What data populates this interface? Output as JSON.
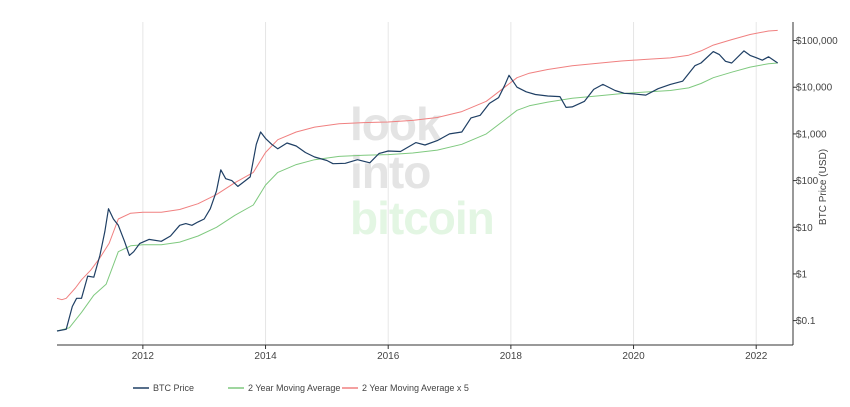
{
  "chart_data": {
    "type": "line",
    "title": "",
    "xlabel": "",
    "ylabel": "BTC Price (USD)",
    "y_scale": "log",
    "ylim": [
      0.03,
      250000
    ],
    "xlim": [
      2010.6,
      2022.6
    ],
    "x_ticks": [
      2012,
      2014,
      2016,
      2018,
      2020,
      2022
    ],
    "x_tick_labels": [
      "2012",
      "2014",
      "2016",
      "2018",
      "2020",
      "2022"
    ],
    "y_ticks": [
      0.1,
      1,
      10,
      100,
      1000,
      10000,
      100000
    ],
    "y_tick_labels": [
      "$0.1",
      "$1",
      "$10",
      "$100",
      "$1,000",
      "$10,000",
      "$100,000"
    ],
    "watermark": [
      "look",
      "into",
      "bitcoin"
    ],
    "legend": {
      "position": "bottom-left"
    },
    "series": [
      {
        "name": "BTC Price",
        "color": "#1f3f64",
        "x": [
          2010.6,
          2010.75,
          2010.85,
          2010.92,
          2011.0,
          2011.1,
          2011.2,
          2011.3,
          2011.38,
          2011.44,
          2011.52,
          2011.6,
          2011.7,
          2011.78,
          2011.85,
          2011.95,
          2012.1,
          2012.3,
          2012.45,
          2012.6,
          2012.7,
          2012.8,
          2012.9,
          2013.0,
          2013.1,
          2013.2,
          2013.27,
          2013.35,
          2013.45,
          2013.55,
          2013.65,
          2013.75,
          2013.85,
          2013.92,
          2014.0,
          2014.1,
          2014.2,
          2014.35,
          2014.5,
          2014.65,
          2014.8,
          2015.0,
          2015.1,
          2015.3,
          2015.5,
          2015.7,
          2015.85,
          2016.0,
          2016.2,
          2016.45,
          2016.6,
          2016.8,
          2017.0,
          2017.2,
          2017.35,
          2017.5,
          2017.65,
          2017.8,
          2017.9,
          2017.97,
          2018.1,
          2018.25,
          2018.4,
          2018.6,
          2018.8,
          2018.9,
          2019.0,
          2019.2,
          2019.35,
          2019.5,
          2019.7,
          2019.85,
          2020.0,
          2020.2,
          2020.4,
          2020.6,
          2020.8,
          2021.0,
          2021.1,
          2021.3,
          2021.4,
          2021.5,
          2021.6,
          2021.8,
          2021.9,
          2022.0,
          2022.1,
          2022.2,
          2022.35
        ],
        "y": [
          0.06,
          0.065,
          0.2,
          0.3,
          0.3,
          0.9,
          0.85,
          2.5,
          8,
          25,
          15,
          11,
          5,
          2.5,
          3,
          4.5,
          5.5,
          5,
          6.5,
          11,
          12,
          11,
          13,
          15,
          25,
          60,
          170,
          110,
          100,
          75,
          95,
          120,
          600,
          1100,
          800,
          600,
          480,
          640,
          550,
          400,
          320,
          270,
          230,
          235,
          280,
          240,
          380,
          430,
          420,
          650,
          580,
          720,
          1000,
          1100,
          2200,
          2500,
          4500,
          6000,
          11000,
          18000,
          10000,
          8000,
          7000,
          6500,
          6300,
          3700,
          3800,
          5000,
          9000,
          11500,
          8500,
          7400,
          7200,
          6800,
          9300,
          11500,
          13500,
          29000,
          33000,
          58000,
          50000,
          36000,
          33000,
          60000,
          48000,
          43000,
          38000,
          45000,
          33000
        ]
      },
      {
        "name": "2 Year Moving Average",
        "color": "#7fc97f",
        "x": [
          2010.6,
          2010.8,
          2011.0,
          2011.2,
          2011.4,
          2011.6,
          2011.8,
          2012.0,
          2012.3,
          2012.6,
          2012.9,
          2013.2,
          2013.5,
          2013.8,
          2014.0,
          2014.2,
          2014.5,
          2014.8,
          2015.2,
          2015.6,
          2016.0,
          2016.4,
          2016.8,
          2017.2,
          2017.6,
          2017.9,
          2018.1,
          2018.3,
          2018.6,
          2019.0,
          2019.4,
          2019.8,
          2020.2,
          2020.6,
          2020.9,
          2021.1,
          2021.3,
          2021.6,
          2021.9,
          2022.2,
          2022.35
        ],
        "y": [
          0.06,
          0.07,
          0.15,
          0.35,
          0.6,
          3,
          4,
          4.2,
          4.2,
          4.8,
          6.5,
          10,
          18,
          30,
          80,
          150,
          220,
          280,
          330,
          350,
          360,
          390,
          450,
          600,
          1000,
          2000,
          3200,
          4000,
          4800,
          5800,
          6500,
          7300,
          7900,
          8500,
          9700,
          12000,
          16000,
          21000,
          27000,
          32000,
          33000
        ]
      },
      {
        "name": "2 Year Moving Average x 5",
        "color": "#f08080",
        "x": [
          2010.6,
          2010.68,
          2010.75,
          2010.9,
          2011.0,
          2011.15,
          2011.3,
          2011.45,
          2011.6,
          2011.8,
          2012.0,
          2012.3,
          2012.6,
          2012.9,
          2013.2,
          2013.5,
          2013.8,
          2014.0,
          2014.2,
          2014.5,
          2014.8,
          2015.2,
          2015.6,
          2016.0,
          2016.4,
          2016.8,
          2017.2,
          2017.6,
          2017.9,
          2018.1,
          2018.3,
          2018.6,
          2019.0,
          2019.4,
          2019.8,
          2020.2,
          2020.6,
          2020.9,
          2021.1,
          2021.3,
          2021.6,
          2021.9,
          2022.2,
          2022.35
        ],
        "y": [
          0.3,
          0.28,
          0.3,
          0.5,
          0.75,
          1.2,
          2.2,
          4.5,
          15,
          20,
          21,
          21,
          24,
          32,
          50,
          90,
          150,
          400,
          750,
          1100,
          1400,
          1650,
          1750,
          1800,
          1950,
          2250,
          3000,
          5000,
          10000,
          16000,
          20000,
          24000,
          29000,
          32500,
          36500,
          39500,
          42500,
          48500,
          60000,
          80000,
          105000,
          135000,
          160000,
          165000
        ]
      }
    ]
  }
}
